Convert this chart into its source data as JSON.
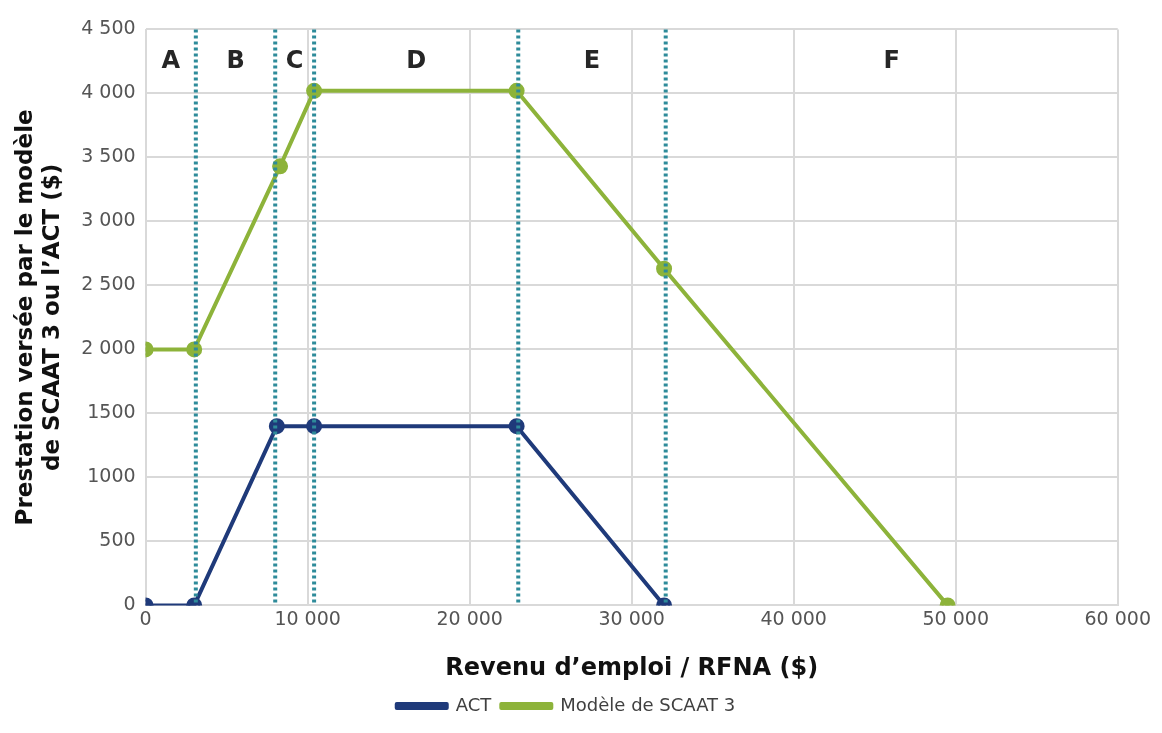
{
  "chart_data": {
    "type": "line",
    "xlabel": "Revenu d’emploi / RFNA ($)",
    "ylabel": "Prestation versée par le modèle de SCAAT 3 ou l’ACT ($)",
    "xlim": [
      0,
      60000
    ],
    "xticks": [
      0,
      {
        "value": 10000,
        "label": "10 000"
      },
      {
        "value": 20000,
        "label": "20 000"
      },
      {
        "value": 30000,
        "label": "30 000"
      },
      {
        "value": 40000,
        "label": "40 000"
      },
      {
        "value": 50000,
        "label": "50 000"
      },
      {
        "value": 60000,
        "label": "60 000"
      }
    ],
    "ylim": [
      0,
      4500
    ],
    "yticks": [
      0,
      500,
      1000,
      1500,
      {
        "value": 2000,
        "label": "2 000"
      },
      {
        "value": 2500,
        "label": "2 500"
      },
      {
        "value": 3000,
        "label": "3 000"
      },
      {
        "value": 3500,
        "label": "3 500"
      },
      {
        "value": 4000,
        "label": "4 000"
      },
      {
        "value": 4500,
        "label": "4 500"
      }
    ],
    "grid": true,
    "legend": "bottom",
    "marker": "circle",
    "line_style": "solid",
    "series": [
      {
        "name": "ACT",
        "color": "#1f3a7a",
        "x": [
          0,
          3000,
          8100,
          10400,
          22900,
          32000
        ],
        "values": [
          0,
          0,
          1400,
          1400,
          1400,
          0
        ]
      },
      {
        "name": "Modèle de SCAAT 3",
        "color": "#8db33a",
        "x": [
          0,
          3000,
          8300,
          10400,
          22900,
          32000,
          49500
        ],
        "values": [
          2000,
          2000,
          3430,
          4020,
          4020,
          2630,
          0
        ]
      }
    ],
    "ref_lines": [
      {
        "axis": "x",
        "value": 3100,
        "color": "#2e8b9a",
        "line_style": "dotted"
      },
      {
        "axis": "x",
        "value": 8000,
        "color": "#2e8b9a",
        "line_style": "dotted"
      },
      {
        "axis": "x",
        "value": 10400,
        "color": "#2e8b9a",
        "line_style": "dotted"
      },
      {
        "axis": "x",
        "value": 23000,
        "color": "#2e8b9a",
        "line_style": "dotted"
      },
      {
        "axis": "x",
        "value": 32100,
        "color": "#2e8b9a",
        "line_style": "dotted"
      }
    ],
    "annotations": [
      "A",
      "B",
      "C",
      "D",
      "E",
      "F"
    ]
  }
}
